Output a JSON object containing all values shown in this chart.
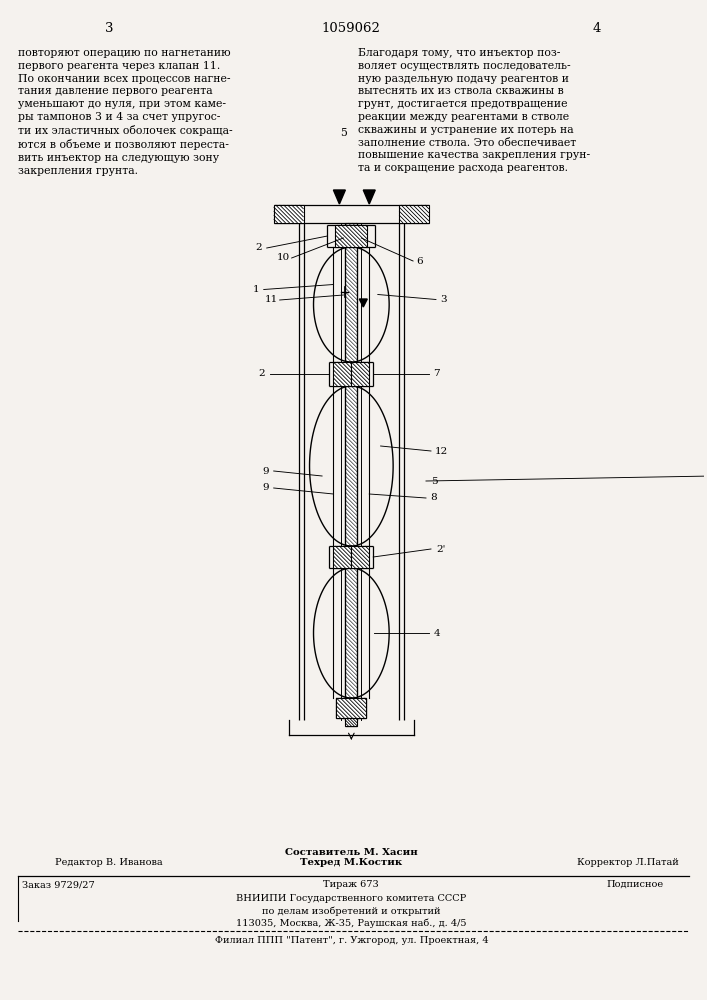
{
  "bg_color": "#f5f2ee",
  "page_width": 7.07,
  "page_height": 10.0,
  "header_num_left": "3",
  "header_patent": "1059062",
  "header_num_right": "4",
  "text_left": "повторяют операцию по нагнетанию\nпервого реагента через клапан 11.\nПо окончании всех процессов нагне-\nтания давление первого реагента\nуменьшают до нуля, при этом каме-\nры тампонов 3 и 4 за счет упругос-\nти их эластичных оболочек сокраща-\nются в объеме и позволяют переста-\nвить инъектор на следующую зону\nзакрепления грунта.",
  "text_right": "Благодаря тому, что инъектор поз-\nволяет осуществлять последователь-\nную раздельную подачу реагентов и\nвытеснять их из ствола скважины в\nгрунт, достигается предотвращение\nреакции между реагентами в стволе\nскважины и устранение их потерь на\nзаполнение ствола. Это обеспечивает\nповышение качества закрепления грун-\nта и сокращение расхода реагентов.",
  "footer_col1_top": "Редактор В. Иванова",
  "footer_col2_top": "Составитель М. Хасин\nТехред М.Костик",
  "footer_col3_top": "Корректор Л.Патай",
  "footer_col1_bot": "Заказ 9729/27",
  "footer_col2_bot": "Тираж 673",
  "footer_col3_bot": "Подписное",
  "footer_line3": "ВНИИПИ Государственного комитета СССР",
  "footer_line4": "по делам изобретений и открытий",
  "footer_line5": "113035, Москва, Ж-35, Раушская наб., д. 4/5",
  "footer_line6": "Филиал ППП \"Патент\", г. Ужгород, ул. Проектная, 4",
  "text_fontsize": 7.8,
  "header_fontsize": 9.5,
  "footer_fontsize": 7.0
}
